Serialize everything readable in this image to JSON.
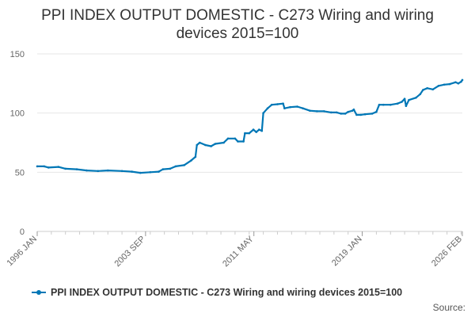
{
  "chart_data": {
    "type": "line",
    "title_lines": [
      "PPI INDEX OUTPUT DOMESTIC - C273 Wiring and wiring",
      "devices 2015=100"
    ],
    "xlabel": "",
    "ylabel": "",
    "ylim": [
      0,
      150
    ],
    "yticks": [
      0,
      50,
      100,
      150
    ],
    "xticks": [
      {
        "label": "1996 JAN",
        "t": 1996.0
      },
      {
        "label": "2003 SEP",
        "t": 2003.667
      },
      {
        "label": "2011 MAY",
        "t": 2011.333
      },
      {
        "label": "2019 JAN",
        "t": 2019.0
      },
      {
        "label": "2026 FEB",
        "t": 2026.083
      }
    ],
    "grid": true,
    "legend_position": "bottom",
    "series": [
      {
        "name": "PPI INDEX OUTPUT DOMESTIC - C273 Wiring and wiring devices 2015=100",
        "color": "#0077b6",
        "points": [
          [
            1996.0,
            55
          ],
          [
            1996.5,
            55
          ],
          [
            1996.8,
            54
          ],
          [
            1997.5,
            54.5
          ],
          [
            1998.0,
            53
          ],
          [
            1998.8,
            52.5
          ],
          [
            1999.5,
            51.5
          ],
          [
            2000.3,
            51
          ],
          [
            2001.0,
            51.5
          ],
          [
            2002.0,
            51
          ],
          [
            2002.7,
            50.5
          ],
          [
            2003.3,
            49.5
          ],
          [
            2004.0,
            50
          ],
          [
            2004.6,
            50.5
          ],
          [
            2004.9,
            52.5
          ],
          [
            2005.4,
            53
          ],
          [
            2005.8,
            55
          ],
          [
            2006.4,
            56
          ],
          [
            2006.9,
            60
          ],
          [
            2007.2,
            63
          ],
          [
            2007.3,
            73
          ],
          [
            2007.5,
            75
          ],
          [
            2007.9,
            73
          ],
          [
            2008.3,
            72
          ],
          [
            2008.6,
            74
          ],
          [
            2009.2,
            75
          ],
          [
            2009.5,
            78.5
          ],
          [
            2010.0,
            78.5
          ],
          [
            2010.2,
            76
          ],
          [
            2010.6,
            76
          ],
          [
            2010.7,
            83
          ],
          [
            2011.0,
            83
          ],
          [
            2011.3,
            86
          ],
          [
            2011.5,
            84
          ],
          [
            2011.7,
            86
          ],
          [
            2011.9,
            85
          ],
          [
            2012.0,
            100
          ],
          [
            2012.3,
            104
          ],
          [
            2012.6,
            107
          ],
          [
            2013.0,
            107.5
          ],
          [
            2013.4,
            108
          ],
          [
            2013.5,
            104
          ],
          [
            2013.9,
            105
          ],
          [
            2014.4,
            105.5
          ],
          [
            2014.8,
            104
          ],
          [
            2015.3,
            102
          ],
          [
            2015.8,
            101.5
          ],
          [
            2016.3,
            101.5
          ],
          [
            2016.8,
            100.5
          ],
          [
            2017.2,
            100.5
          ],
          [
            2017.5,
            99.5
          ],
          [
            2017.8,
            99.5
          ],
          [
            2018.0,
            101
          ],
          [
            2018.3,
            102
          ],
          [
            2018.4,
            103
          ],
          [
            2018.6,
            98.5
          ],
          [
            2018.9,
            98.5
          ],
          [
            2019.2,
            99
          ],
          [
            2019.7,
            99.5
          ],
          [
            2020.0,
            101
          ],
          [
            2020.2,
            107
          ],
          [
            2020.5,
            107
          ],
          [
            2021.0,
            107
          ],
          [
            2021.5,
            108
          ],
          [
            2021.8,
            109.5
          ],
          [
            2022.0,
            112
          ],
          [
            2022.1,
            106
          ],
          [
            2022.3,
            111
          ],
          [
            2022.8,
            113
          ],
          [
            2023.1,
            116
          ],
          [
            2023.3,
            119.5
          ],
          [
            2023.6,
            121
          ],
          [
            2024.0,
            120
          ],
          [
            2024.4,
            123
          ],
          [
            2024.8,
            124
          ],
          [
            2025.2,
            124.5
          ],
          [
            2025.6,
            126
          ],
          [
            2025.8,
            125
          ],
          [
            2026.0,
            126.5
          ],
          [
            2026.083,
            128
          ]
        ]
      }
    ],
    "source_label": "Source:"
  }
}
